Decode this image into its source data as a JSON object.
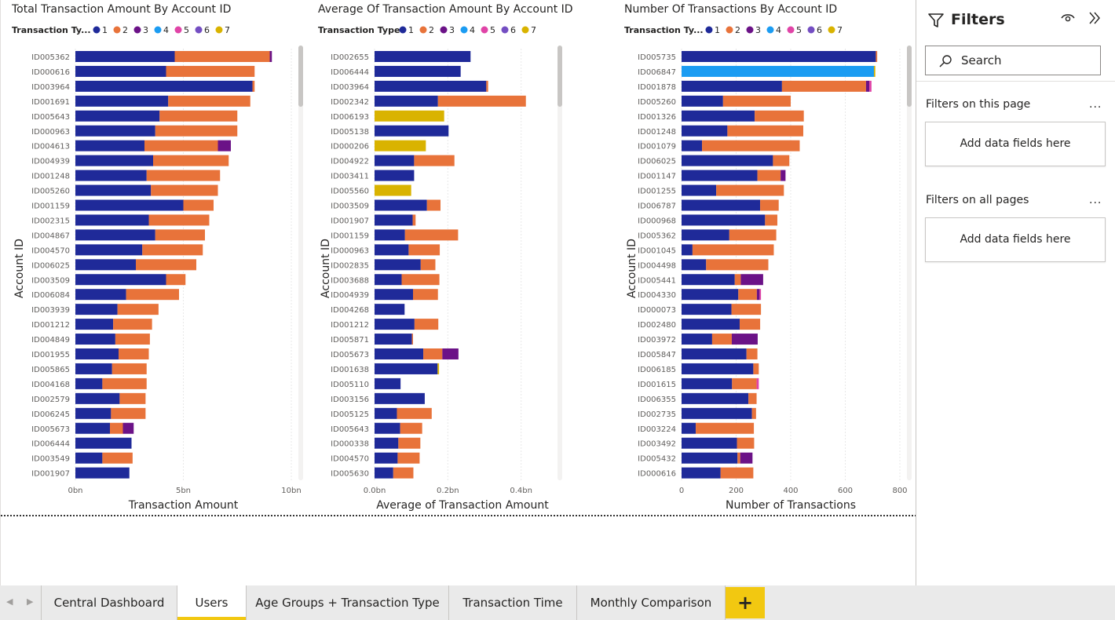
{
  "colors": {
    "type1": "#1f2a99",
    "type2": "#e8733a",
    "type3": "#6b1287",
    "type4": "#1b9cf2",
    "type5": "#e044a7",
    "type6": "#744ec2",
    "type7": "#d9b300"
  },
  "legend_items": [
    {
      "label": "1",
      "color": "#1f2a99"
    },
    {
      "label": "2",
      "color": "#e8733a"
    },
    {
      "label": "3",
      "color": "#6b1287"
    },
    {
      "label": "4",
      "color": "#1b9cf2"
    },
    {
      "label": "5",
      "color": "#e044a7"
    },
    {
      "label": "6",
      "color": "#744ec2"
    },
    {
      "label": "7",
      "color": "#d9b300"
    }
  ],
  "chart_data": [
    {
      "type": "bar",
      "orientation": "horizontal-stacked",
      "title": "Total Transaction Amount By Account ID",
      "legend_title": "Transaction Ty...",
      "xlabel": "Transaction Amount",
      "ylabel": "Account ID",
      "xlim": [
        0,
        10
      ],
      "xticks": [
        {
          "value": 0,
          "label": "0bn"
        },
        {
          "value": 5,
          "label": "5bn"
        },
        {
          "value": 10,
          "label": "10bn"
        }
      ],
      "grid": true,
      "categories": [
        "ID005362",
        "ID000616",
        "ID003964",
        "ID001691",
        "ID005643",
        "ID000963",
        "ID004613",
        "ID004939",
        "ID001248",
        "ID005260",
        "ID001159",
        "ID002315",
        "ID004867",
        "ID004570",
        "ID006025",
        "ID003509",
        "ID006084",
        "ID003939",
        "ID001212",
        "ID004849",
        "ID001955",
        "ID005865",
        "ID004168",
        "ID002579",
        "ID006245",
        "ID005673",
        "ID006444",
        "ID003549",
        "ID001907"
      ],
      "series": [
        {
          "name": "1",
          "values": [
            4.6,
            4.2,
            8.2,
            4.3,
            3.9,
            3.7,
            3.2,
            3.6,
            3.3,
            3.5,
            5.0,
            3.4,
            3.7,
            3.1,
            2.8,
            4.2,
            2.35,
            1.95,
            1.75,
            1.85,
            2.0,
            1.7,
            1.25,
            2.05,
            1.65,
            1.6,
            2.6,
            1.25,
            2.5
          ]
        },
        {
          "name": "2",
          "values": [
            4.4,
            4.1,
            0.1,
            3.8,
            3.6,
            3.8,
            3.4,
            3.5,
            3.4,
            3.1,
            1.4,
            2.8,
            2.3,
            2.8,
            2.8,
            0.9,
            2.45,
            1.9,
            1.8,
            1.6,
            1.4,
            1.6,
            2.05,
            1.2,
            1.6,
            0.6,
            0,
            1.4,
            0
          ]
        },
        {
          "name": "3",
          "values": [
            0.1,
            0,
            0,
            0,
            0,
            0,
            0.6,
            0,
            0,
            0,
            0,
            0,
            0,
            0,
            0,
            0,
            0,
            0,
            0,
            0,
            0,
            0,
            0,
            0,
            0,
            0.5,
            0,
            0,
            0
          ]
        },
        {
          "name": "4",
          "values": [
            0,
            0,
            0,
            0,
            0,
            0,
            0,
            0,
            0,
            0,
            0,
            0,
            0,
            0,
            0,
            0,
            0,
            0,
            0,
            0,
            0,
            0,
            0,
            0,
            0,
            0,
            0,
            0,
            0
          ]
        },
        {
          "name": "5",
          "values": [
            0,
            0,
            0,
            0,
            0,
            0,
            0,
            0,
            0,
            0,
            0,
            0,
            0,
            0,
            0,
            0,
            0,
            0,
            0,
            0,
            0,
            0,
            0,
            0,
            0,
            0,
            0,
            0,
            0
          ]
        },
        {
          "name": "6",
          "values": [
            0,
            0,
            0,
            0,
            0,
            0,
            0,
            0,
            0,
            0,
            0,
            0,
            0,
            0,
            0,
            0,
            0,
            0,
            0,
            0,
            0,
            0,
            0,
            0,
            0,
            0,
            0,
            0,
            0
          ]
        },
        {
          "name": "7",
          "values": [
            0,
            0,
            0,
            0,
            0,
            0,
            0,
            0,
            0,
            0,
            0,
            0,
            0,
            0,
            0,
            0,
            0,
            0,
            0,
            0,
            0,
            0,
            0,
            0,
            0,
            0,
            0,
            0,
            0
          ]
        }
      ]
    },
    {
      "type": "bar",
      "orientation": "horizontal-stacked",
      "title": "Average Of Transaction Amount By Account ID",
      "legend_title": "Transaction Type",
      "xlabel": "Average of Transaction Amount",
      "ylabel": "Account ID",
      "xlim": [
        0,
        0.48
      ],
      "xticks": [
        {
          "value": 0,
          "label": "0.0bn"
        },
        {
          "value": 0.2,
          "label": "0.2bn"
        },
        {
          "value": 0.4,
          "label": "0.4bn"
        }
      ],
      "grid": true,
      "categories": [
        "ID002655",
        "ID006444",
        "ID003964",
        "ID002342",
        "ID006193",
        "ID005138",
        "ID000206",
        "ID004922",
        "ID003411",
        "ID005560",
        "ID003509",
        "ID001907",
        "ID001159",
        "ID000963",
        "ID002835",
        "ID003688",
        "ID004939",
        "ID004268",
        "ID001212",
        "ID005871",
        "ID005673",
        "ID001638",
        "ID005110",
        "ID003156",
        "ID005125",
        "ID005643",
        "ID000338",
        "ID004570",
        "ID005630"
      ],
      "series": [
        {
          "name": "1",
          "values": [
            0.262,
            0.235,
            0.305,
            0.173,
            0,
            0.202,
            0,
            0.108,
            0.108,
            0,
            0.143,
            0.104,
            0.083,
            0.093,
            0.126,
            0.074,
            0.105,
            0.082,
            0.109,
            0.102,
            0.133,
            0.172,
            0.071,
            0.137,
            0.061,
            0.07,
            0.065,
            0.063,
            0.051
          ]
        },
        {
          "name": "2",
          "values": [
            0,
            0,
            0.005,
            0.24,
            0,
            0,
            0,
            0.11,
            0,
            0,
            0.037,
            0.008,
            0.145,
            0.085,
            0.04,
            0.103,
            0.068,
            0,
            0.065,
            0.003,
            0.052,
            0,
            0,
            0,
            0.095,
            0.06,
            0.06,
            0.06,
            0.055
          ]
        },
        {
          "name": "3",
          "values": [
            0,
            0,
            0,
            0,
            0,
            0,
            0,
            0,
            0,
            0,
            0,
            0,
            0,
            0,
            0,
            0,
            0,
            0,
            0,
            0,
            0.044,
            0,
            0,
            0,
            0,
            0,
            0,
            0,
            0
          ]
        },
        {
          "name": "4",
          "values": [
            0,
            0,
            0,
            0,
            0,
            0,
            0,
            0,
            0,
            0,
            0,
            0,
            0,
            0,
            0,
            0,
            0,
            0,
            0,
            0,
            0,
            0,
            0,
            0,
            0,
            0,
            0,
            0,
            0
          ]
        },
        {
          "name": "5",
          "values": [
            0,
            0,
            0,
            0,
            0,
            0,
            0,
            0,
            0,
            0,
            0,
            0,
            0,
            0,
            0,
            0,
            0,
            0,
            0,
            0,
            0,
            0,
            0,
            0,
            0,
            0,
            0,
            0,
            0
          ]
        },
        {
          "name": "6",
          "values": [
            0,
            0,
            0,
            0,
            0,
            0,
            0,
            0,
            0,
            0,
            0,
            0,
            0,
            0,
            0,
            0,
            0,
            0,
            0,
            0,
            0,
            0,
            0,
            0,
            0,
            0,
            0,
            0,
            0
          ]
        },
        {
          "name": "7",
          "values": [
            0,
            0,
            0,
            0,
            0.19,
            0,
            0.14,
            0,
            0,
            0.1,
            0,
            0,
            0,
            0,
            0,
            0,
            0,
            0,
            0,
            0,
            0,
            0.004,
            0,
            0,
            0,
            0,
            0,
            0,
            0
          ]
        }
      ]
    },
    {
      "type": "bar",
      "orientation": "horizontal-stacked",
      "title": "Number Of Transactions By Account ID",
      "legend_title": "Transaction Ty...",
      "xlabel": "Number of Transactions",
      "ylabel": "Account ID",
      "xlim": [
        0,
        800
      ],
      "xticks": [
        {
          "value": 0,
          "label": "0"
        },
        {
          "value": 200,
          "label": "200"
        },
        {
          "value": 400,
          "label": "400"
        },
        {
          "value": 600,
          "label": "600"
        },
        {
          "value": 800,
          "label": "800"
        }
      ],
      "grid": true,
      "categories": [
        "ID005735",
        "ID006847",
        "ID001878",
        "ID005260",
        "ID001326",
        "ID001248",
        "ID001079",
        "ID006025",
        "ID001147",
        "ID001255",
        "ID006787",
        "ID000968",
        "ID005362",
        "ID001045",
        "ID004498",
        "ID005441",
        "ID004330",
        "ID000073",
        "ID002480",
        "ID003972",
        "ID005847",
        "ID006185",
        "ID001615",
        "ID006355",
        "ID002735",
        "ID003224",
        "ID003492",
        "ID005432",
        "ID000616"
      ],
      "series": [
        {
          "name": "1",
          "values": [
            712,
            0,
            368,
            152,
            268,
            168,
            75,
            335,
            278,
            127,
            288,
            306,
            175,
            40,
            90,
            195,
            208,
            183,
            213,
            112,
            238,
            263,
            185,
            245,
            258,
            52,
            203,
            205,
            143
          ]
        },
        {
          "name": "2",
          "values": [
            5,
            0,
            308,
            248,
            180,
            278,
            358,
            60,
            85,
            248,
            68,
            45,
            172,
            298,
            228,
            22,
            68,
            108,
            75,
            72,
            40,
            20,
            90,
            30,
            15,
            213,
            63,
            10,
            120
          ]
        },
        {
          "name": "3",
          "values": [
            0,
            0,
            12,
            0,
            0,
            0,
            0,
            0,
            18,
            0,
            0,
            0,
            0,
            0,
            0,
            82,
            10,
            0,
            0,
            95,
            0,
            0,
            0,
            0,
            0,
            0,
            0,
            45,
            0
          ]
        },
        {
          "name": "4",
          "values": [
            0,
            705,
            0,
            0,
            0,
            0,
            0,
            0,
            0,
            0,
            0,
            0,
            0,
            0,
            0,
            0,
            0,
            0,
            0,
            0,
            0,
            0,
            0,
            0,
            0,
            0,
            0,
            0,
            0
          ]
        },
        {
          "name": "5",
          "values": [
            0,
            0,
            8,
            0,
            0,
            0,
            0,
            0,
            0,
            0,
            0,
            0,
            0,
            0,
            0,
            0,
            5,
            0,
            0,
            0,
            0,
            0,
            8,
            0,
            0,
            0,
            0,
            0,
            0
          ]
        },
        {
          "name": "6",
          "values": [
            0,
            0,
            0,
            0,
            0,
            0,
            0,
            0,
            0,
            0,
            0,
            0,
            0,
            0,
            0,
            0,
            0,
            0,
            0,
            0,
            0,
            0,
            0,
            0,
            0,
            0,
            0,
            0,
            0
          ]
        },
        {
          "name": "7",
          "values": [
            0,
            5,
            0,
            0,
            0,
            0,
            0,
            0,
            0,
            0,
            0,
            0,
            0,
            0,
            0,
            0,
            0,
            0,
            0,
            0,
            0,
            0,
            0,
            0,
            0,
            0,
            0,
            0,
            0
          ]
        }
      ]
    }
  ],
  "filters": {
    "title": "Filters",
    "search_label": "Search",
    "page_section": "Filters on this page",
    "all_section": "Filters on all pages",
    "more": "...",
    "add_fields": "Add data fields here"
  },
  "tabs": [
    {
      "label": "Central Dashboard",
      "active": false
    },
    {
      "label": "Users",
      "active": true
    },
    {
      "label": "Age Groups + Transaction Type",
      "active": false
    },
    {
      "label": "Transaction Time",
      "active": false
    },
    {
      "label": "Monthly Comparison",
      "active": false
    }
  ],
  "add_tab_label": "+"
}
